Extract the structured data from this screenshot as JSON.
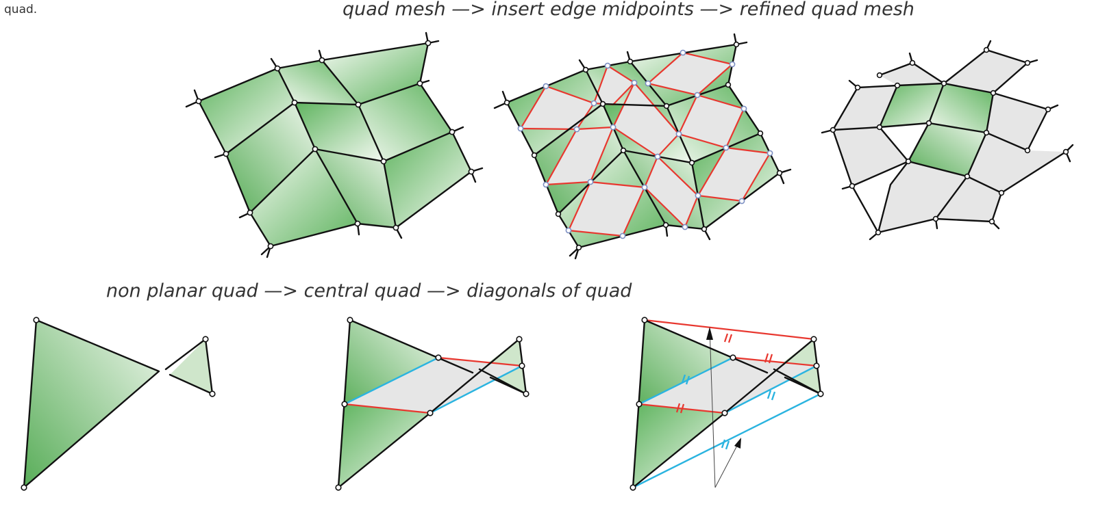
{
  "side_text": "quad.",
  "captions": {
    "top": "quad mesh —> insert edge midpoints —> refined quad mesh",
    "bottom": "non planar quad —> central quad —> diagonals of quad"
  },
  "colors": {
    "face_green": "#5fb45f",
    "face_light": "#f2f8f0",
    "face_gray": "#e6e6e6",
    "midpoint_edges": "#e8372f",
    "diagonal_edges": "#2bb4e0",
    "mesh_edges": "#111111"
  }
}
